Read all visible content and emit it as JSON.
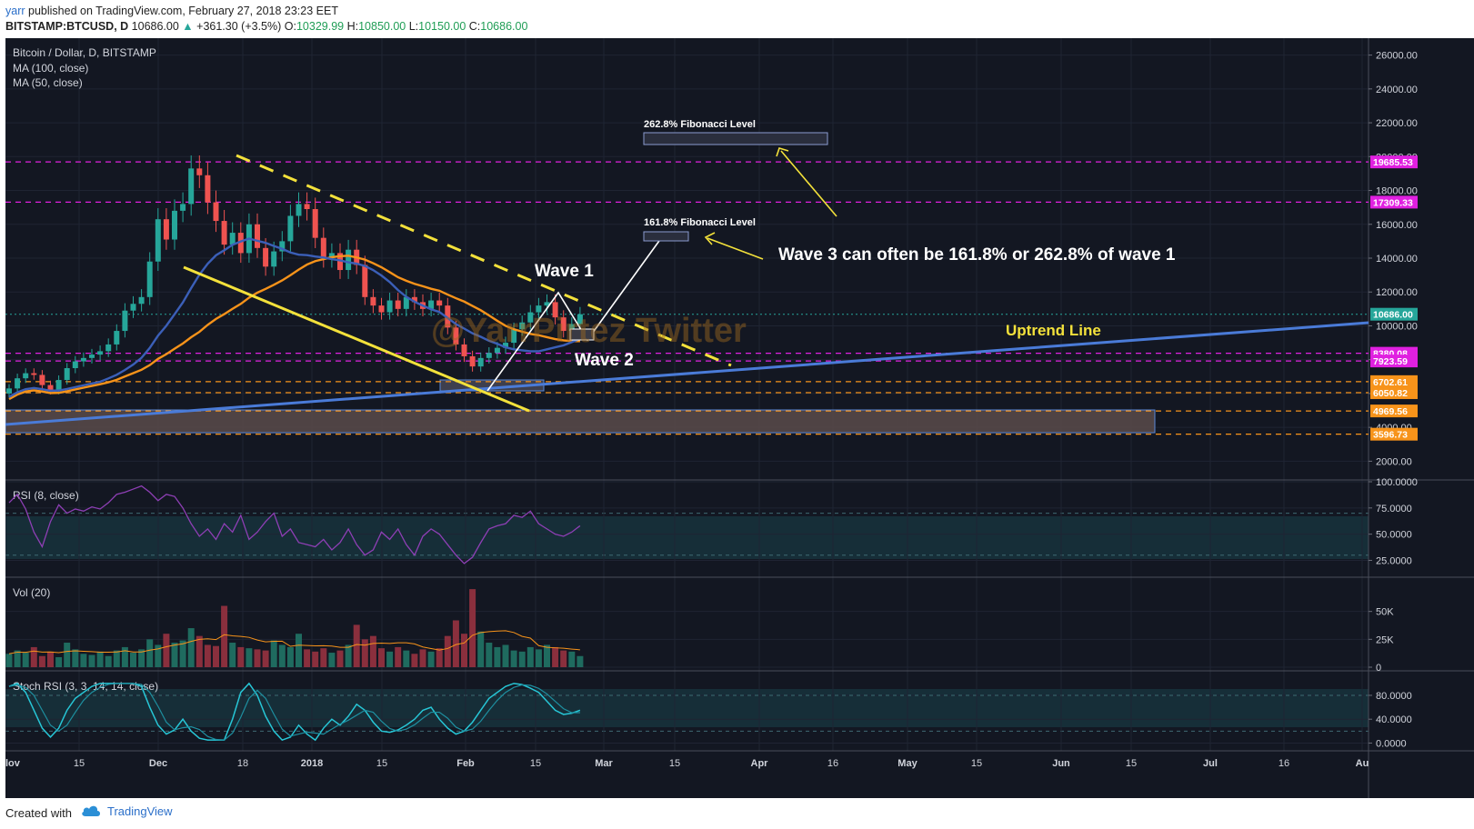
{
  "header": {
    "user": "yarr",
    "published": "published on TradingView.com, February 27, 2018 23:23 EET",
    "symbol": "BITSTAMP:BTCUSD, D",
    "last": "10686.00",
    "change_arrow": "▲",
    "change": "+361.30 (+3.5%)",
    "open_label": "O:",
    "open": "10329.99",
    "high_label": "H:",
    "high": "10850.00",
    "low_label": "L:",
    "low": "10150.00",
    "close_label": "C:",
    "close": "10686.00"
  },
  "legend": {
    "title": "Bitcoin / Dollar, D, BITSTAMP",
    "ma100": "MA (100, close)",
    "ma50": "MA (50, close)",
    "rsi": "RSI (8, close)",
    "vol": "Vol (20)",
    "stoch": "Stoch RSI (3, 3, 14, 14, close)"
  },
  "annotations": {
    "watermark": "@YarrPirtez Twitter",
    "wave1": "Wave 1",
    "wave2": "Wave 2",
    "wave3_note": "Wave 3 can often be 161.8% or 262.8% of wave 1",
    "uptrend": "Uptrend Line",
    "fib262": "262.8% Fibonacci Level",
    "fib161": "161.8% Fibonacci Level"
  },
  "footer": {
    "created": "Created with",
    "brand": "TradingView",
    "logo_icon": "cloud-logo-icon"
  },
  "colors": {
    "background": "#131722",
    "up": "#26a69a",
    "down": "#ef5350",
    "ma100": "#f7931a",
    "ma50": "#3b5fb8",
    "rsi": "#8e3fb5",
    "stoch_k": "#27c6d6",
    "uptrend": "#4a7bd8",
    "fib_magenta": "#e020e0",
    "fib_orange": "#f7931a",
    "triangle_lines": "#f3e13b",
    "current_price": "#26a69a"
  },
  "chart_data": [
    {
      "type": "candlestick",
      "title": "Bitcoin / Dollar, D, BITSTAMP",
      "x_axis_ticks": [
        "lov",
        "15",
        "Dec",
        "18",
        "2018",
        "15",
        "Feb",
        "15",
        "Mar",
        "15",
        "Apr",
        "16",
        "May",
        "15",
        "Jun",
        "15",
        "Jul",
        "16",
        "Au"
      ],
      "y_axis_ticks": [
        "26000.00",
        "24000.00",
        "22000.00",
        "20000.00",
        "18000.00",
        "16000.00",
        "14000.00",
        "12000.00",
        "10000.00",
        "8000.00",
        "6000.00",
        "4000.00",
        "2000.00"
      ],
      "ylim": [
        1000,
        27000
      ],
      "close_series": [
        6300,
        6900,
        7200,
        7100,
        6500,
        6200,
        6800,
        7500,
        7900,
        8100,
        8300,
        8500,
        8900,
        9700,
        10900,
        11300,
        11700,
        13800,
        16300,
        15100,
        16800,
        17200,
        19300,
        18900,
        17300,
        16200,
        14800,
        15500,
        14300,
        16000,
        14600,
        13500,
        14400,
        15000,
        16500,
        17200,
        16900,
        15200,
        14000,
        14300,
        13300,
        14500,
        13600,
        11700,
        11200,
        10800,
        11500,
        11000,
        11700,
        11400,
        11000,
        11500,
        11200,
        9900,
        8900,
        8200,
        7600,
        8100,
        8400,
        8700,
        9000,
        9800,
        10200,
        10800,
        11200,
        11400,
        10500,
        9700,
        10100,
        10686
      ],
      "current_price": "10686.00",
      "price_labels": [
        {
          "text": "19685.53",
          "value": 19685.53,
          "style": "magenta"
        },
        {
          "text": "17309.33",
          "value": 17309.33,
          "style": "magenta"
        },
        {
          "text": "8380.08",
          "value": 8380.08,
          "style": "magenta"
        },
        {
          "text": "7923.59",
          "value": 7923.59,
          "style": "magenta"
        },
        {
          "text": "6702.61",
          "value": 6702.61,
          "style": "orange"
        },
        {
          "text": "6050.82",
          "value": 6050.82,
          "style": "orange"
        },
        {
          "text": "4969.56",
          "value": 4969.56,
          "style": "orange"
        },
        {
          "text": "3596.73",
          "value": 3596.73,
          "style": "orange"
        }
      ],
      "series": [
        {
          "name": "MA (100, close)"
        },
        {
          "name": "MA (50, close)"
        }
      ],
      "fib_targets": [
        {
          "text": "262.8% Fibonacci Level",
          "value": 20000
        },
        {
          "text": "161.8% Fibonacci Level",
          "value": 15000
        }
      ]
    },
    {
      "type": "line",
      "title": "RSI (8, close)",
      "y_axis_ticks": [
        "100.0000",
        "75.0000",
        "50.0000",
        "25.0000"
      ],
      "ylim": [
        15,
        100
      ],
      "band": [
        30,
        70
      ],
      "values": [
        80,
        88,
        74,
        52,
        38,
        62,
        78,
        70,
        74,
        72,
        76,
        74,
        80,
        88,
        90,
        93,
        96,
        90,
        82,
        88,
        86,
        75,
        60,
        48,
        55,
        45,
        60,
        52,
        68,
        45,
        52,
        62,
        70,
        48,
        55,
        42,
        40,
        38,
        45,
        35,
        42,
        55,
        40,
        30,
        35,
        52,
        45,
        55,
        40,
        30,
        48,
        55,
        50,
        40,
        30,
        22,
        28,
        42,
        55,
        58,
        60,
        68,
        66,
        72,
        60,
        55,
        50,
        48,
        52,
        58
      ]
    },
    {
      "type": "bar",
      "title": "Vol (20)",
      "y_axis_ticks": [
        "50K",
        "25K",
        "0"
      ],
      "ylim": [
        0,
        75000
      ],
      "values": [
        12000,
        15000,
        13000,
        18000,
        10000,
        14000,
        9000,
        22000,
        16000,
        12000,
        11000,
        14000,
        10000,
        15000,
        18000,
        13000,
        16000,
        25000,
        20000,
        30000,
        22000,
        24000,
        35000,
        28000,
        20000,
        19000,
        55000,
        22000,
        18000,
        17000,
        16000,
        15000,
        24000,
        20000,
        18000,
        30000,
        16000,
        14000,
        17000,
        13000,
        15000,
        20000,
        38000,
        25000,
        28000,
        17000,
        14000,
        18000,
        15000,
        12000,
        16000,
        14000,
        17000,
        28000,
        42000,
        30000,
        70000,
        32000,
        22000,
        18000,
        20000,
        15000,
        14000,
        18000,
        16000,
        20000,
        18000,
        15000,
        14000,
        10000
      ]
    },
    {
      "type": "line",
      "title": "Stoch RSI (3, 3, 14, 14, close)",
      "y_axis_ticks": [
        "80.0000",
        "40.0000",
        "0.0000"
      ],
      "ylim": [
        -10,
        115
      ],
      "band": [
        20,
        80
      ],
      "values": [
        95,
        100,
        85,
        55,
        25,
        10,
        25,
        55,
        75,
        85,
        95,
        100,
        100,
        100,
        100,
        100,
        95,
        60,
        30,
        15,
        22,
        40,
        20,
        8,
        5,
        5,
        5,
        40,
        85,
        100,
        80,
        45,
        20,
        5,
        10,
        30,
        15,
        5,
        25,
        40,
        30,
        45,
        65,
        55,
        35,
        20,
        18,
        22,
        30,
        40,
        55,
        60,
        40,
        25,
        15,
        20,
        35,
        55,
        75,
        85,
        95,
        100,
        98,
        92,
        85,
        70,
        55,
        48,
        50,
        55
      ]
    }
  ]
}
